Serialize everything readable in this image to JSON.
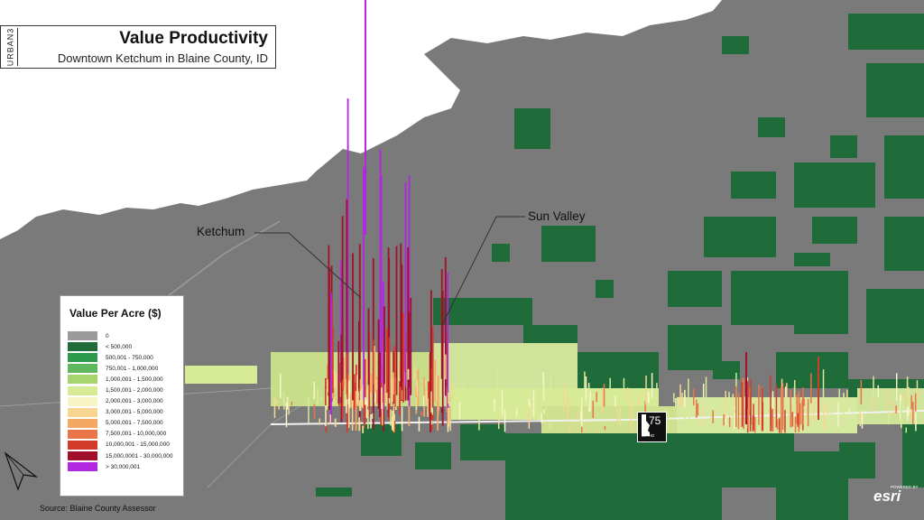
{
  "title": {
    "brand": "URBAN3",
    "main": "Value Productivity",
    "subtitle": "Downtown Ketchum in Blaine County, ID"
  },
  "legend": {
    "title": "Value Per Acre ($)",
    "items": [
      {
        "label": "0",
        "color": "#9a9a9a"
      },
      {
        "label": "< 500,000",
        "color": "#1f6b3a"
      },
      {
        "label": "500,001 - 750,000",
        "color": "#2e9a4e"
      },
      {
        "label": "750,001 - 1,000,000",
        "color": "#5fb85e"
      },
      {
        "label": "1,000,001 - 1,500,000",
        "color": "#a6d46d"
      },
      {
        "label": "1,500,001 - 2,000,000",
        "color": "#d7eb97"
      },
      {
        "label": "2,000,001 - 3,000,000",
        "color": "#f7f4c6"
      },
      {
        "label": "3,000,001 - 5,000,000",
        "color": "#f8d590"
      },
      {
        "label": "5,000,001 - 7,500,000",
        "color": "#f5a863"
      },
      {
        "label": "7,500,001 - 10,000,000",
        "color": "#ea7548"
      },
      {
        "label": "10,000,001 - 15,000,000",
        "color": "#d23b2a"
      },
      {
        "label": "15,000,0001 - 30,000,000",
        "color": "#a1112b"
      },
      {
        "label": "> 30,000,001",
        "color": "#b227e0"
      }
    ]
  },
  "callouts": {
    "ketchum": "Ketchum",
    "sun_valley": "Sun Valley"
  },
  "highway": {
    "number": "75",
    "state": "IDAHO"
  },
  "source": "Source: Blaine County Assessor",
  "attribution": {
    "powered": "POWERED BY",
    "esri": "esri"
  },
  "colors": {
    "terrain": "#7a7a7a",
    "snow": "#ffffff",
    "land_green": "#1f6b3a"
  }
}
